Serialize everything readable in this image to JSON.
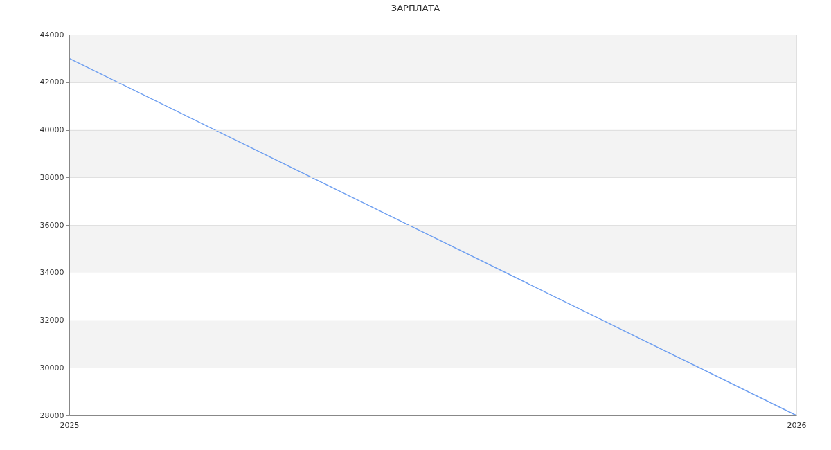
{
  "chart_data": {
    "type": "line",
    "title": "ЗАРПЛАТА",
    "x": [
      2025,
      2026
    ],
    "series": [
      {
        "color": "#6d9ef0",
        "values": [
          43000,
          28000
        ]
      }
    ],
    "xlim": [
      2025,
      2026
    ],
    "xticks": [
      2025,
      2026
    ],
    "ylim": [
      28000,
      44000
    ],
    "yticks": [
      28000,
      30000,
      32000,
      34000,
      36000,
      38000,
      40000,
      42000,
      44000
    ],
    "grid": true,
    "bands": [
      {
        "axis": "y",
        "from": 42000,
        "to": 44000,
        "color": "#f3f3f3"
      },
      {
        "axis": "y",
        "from": 38000,
        "to": 40000,
        "color": "#f3f3f3"
      },
      {
        "axis": "y",
        "from": 34000,
        "to": 36000,
        "color": "#f3f3f3"
      },
      {
        "axis": "y",
        "from": 30000,
        "to": 32000,
        "color": "#f3f3f3"
      }
    ]
  }
}
